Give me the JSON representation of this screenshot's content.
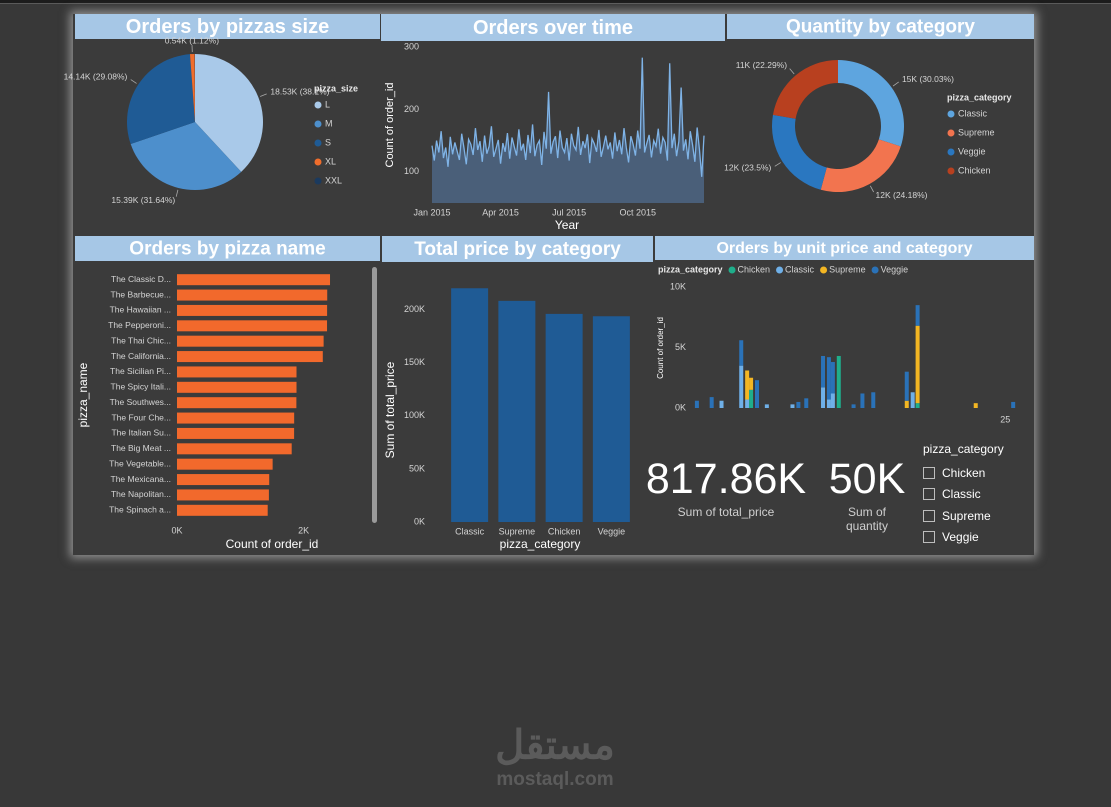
{
  "chart_data": [
    {
      "type": "pie",
      "title": "Orders by pizzas size",
      "legend_title": "pizza_size",
      "categories": [
        "L",
        "M",
        "S",
        "XL",
        "XXL"
      ],
      "values": [
        18526,
        15385,
        14137,
        544,
        28
      ],
      "value_labels": [
        "18.53K (38.1%)",
        "15.39K (31.64%)",
        "14.14K (29.08%)",
        "0.54K (1.12%)",
        null
      ],
      "colors": [
        "#a9c9e9",
        "#4d8fcc",
        "#1f5b95",
        "#f06d2c",
        "#1b3a5e"
      ],
      "legend": "right"
    },
    {
      "type": "line",
      "title": "Orders over time",
      "ylabel": "Count of order_id",
      "xlabel": "Year",
      "categories": [
        "Jan 2015",
        null,
        null,
        null,
        null,
        null,
        null,
        null,
        null,
        null,
        null,
        null,
        null,
        null,
        null,
        null,
        null,
        null,
        null,
        null,
        null,
        null,
        null,
        null,
        null,
        null,
        null,
        null,
        null,
        null,
        "Apr 2015",
        null,
        null,
        null,
        null,
        null,
        null,
        null,
        null,
        null,
        null,
        null,
        null,
        null,
        null,
        null,
        null,
        null,
        null,
        null,
        null,
        null,
        null,
        null,
        null,
        null,
        null,
        null,
        null,
        null,
        "Jul 2015",
        null,
        null,
        null,
        null,
        null,
        null,
        null,
        null,
        null,
        null,
        null,
        null,
        null,
        null,
        null,
        null,
        null,
        null,
        null,
        null,
        null,
        null,
        null,
        null,
        null,
        null,
        null,
        null,
        null,
        "Oct 2015",
        null,
        null,
        null,
        null,
        null,
        null,
        null,
        null,
        null,
        null,
        null,
        null,
        null,
        null,
        null,
        null,
        null,
        null,
        null,
        null,
        null,
        null,
        null,
        null,
        null,
        null,
        null,
        null,
        null
      ],
      "values": [
        142,
        118,
        150,
        131,
        165,
        122,
        139,
        108,
        156,
        128,
        147,
        133,
        119,
        161,
        138,
        112,
        152,
        144,
        127,
        170,
        135,
        149,
        116,
        158,
        129,
        141,
        173,
        124,
        137,
        151,
        113,
        146,
        132,
        162,
        121,
        155,
        140,
        126,
        168,
        134,
        145,
        119,
        159,
        130,
        176,
        125,
        143,
        150,
        111,
        164,
        137,
        228,
        129,
        148,
        157,
        122,
        166,
        139,
        131,
        154,
        118,
        161,
        142,
        135,
        172,
        127,
        149,
        138,
        160,
        114,
        153,
        145,
        132,
        167,
        124,
        140,
        158,
        136,
        147,
        121,
        163,
        133,
        151,
        128,
        170,
        139,
        115,
        157,
        144,
        126,
        166,
        137,
        283,
        131,
        146,
        159,
        123,
        150,
        141,
        169,
        129,
        155,
        147,
        118,
        274,
        138,
        161,
        125,
        149,
        235,
        134,
        152,
        120,
        165,
        143,
        116,
        171,
        136,
        92,
        158
      ],
      "color": "#7fb3e6",
      "area": true,
      "area_color": "#4d6481",
      "ylim": [
        50,
        300
      ],
      "yticks": [
        100,
        200,
        300
      ],
      "grid": false
    },
    {
      "type": "donut",
      "title": "Quantity by category",
      "legend_title": "pizza_category",
      "categories": [
        "Classic",
        "Supreme",
        "Veggie",
        "Chicken"
      ],
      "values": [
        14888,
        11987,
        11649,
        11050
      ],
      "value_labels": [
        "15K (30.03%)",
        "12K (24.18%)",
        "12K (23.5%)",
        "11K (22.29%)"
      ],
      "colors": [
        "#5ea5df",
        "#f2744f",
        "#2a77c0",
        "#b8401f"
      ],
      "legend": "right"
    },
    {
      "type": "bar",
      "orientation": "horizontal",
      "title": "Orders by pizza name",
      "ylabel": "pizza_name",
      "xlabel": "Count of order_id",
      "categories": [
        "The Classic D...",
        "The Barbecue...",
        "The Hawaiian ...",
        "The Pepperoni...",
        "The Thai Chic...",
        "The California...",
        "The Sicilian Pi...",
        "The Spicy Itali...",
        "The Southwes...",
        "The Four Che...",
        "The Italian Su...",
        "The Big Meat ...",
        "The Vegetable...",
        "The Mexicana...",
        "The Napolitan...",
        "The Spinach a..."
      ],
      "values": [
        2416,
        2372,
        2370,
        2369,
        2315,
        2302,
        1887,
        1887,
        1885,
        1850,
        1849,
        1811,
        1510,
        1456,
        1451,
        1432
      ],
      "color": "#f2692c",
      "xlim": [
        0,
        3000
      ],
      "xticks": [
        {
          "value": 0,
          "label": "0K"
        },
        {
          "value": 2000,
          "label": "2K"
        }
      ],
      "grid": false
    },
    {
      "type": "bar",
      "title": "Total price by category",
      "ylabel": "Sum of total_price",
      "xlabel": "pizza_category",
      "categories": [
        "Classic",
        "Supreme",
        "Chicken",
        "Veggie"
      ],
      "values": [
        220053.1,
        208197,
        195919.5,
        193690.45
      ],
      "color": "#1f5b95",
      "ylim": [
        0,
        225000
      ],
      "yticks": [
        {
          "value": 0,
          "label": "0K"
        },
        {
          "value": 50000,
          "label": "50K"
        },
        {
          "value": 100000,
          "label": "100K"
        },
        {
          "value": 150000,
          "label": "150K"
        },
        {
          "value": 200000,
          "label": "200K"
        }
      ],
      "grid": false
    },
    {
      "type": "bar",
      "stacked": true,
      "title": "Orders by unit price and category",
      "ylabel": "Count of order_id",
      "legend_title": "pizza_category",
      "x": [
        9.35,
        10.1,
        10.6,
        11.6,
        11.9,
        12.1,
        12.4,
        12.9,
        14.2,
        14.5,
        14.9,
        15.75,
        16.05,
        16.25,
        16.55,
        17.3,
        17.75,
        18.3,
        20.0,
        20.3,
        20.55,
        23.5,
        25.4
      ],
      "series": [
        {
          "name": "Chicken",
          "color": "#1fae8b",
          "values": [
            null,
            null,
            null,
            null,
            null,
            1500,
            null,
            null,
            null,
            null,
            null,
            null,
            null,
            null,
            4300,
            null,
            null,
            null,
            null,
            null,
            400,
            null,
            null
          ]
        },
        {
          "name": "Classic",
          "color": "#6fb0e8",
          "values": [
            null,
            null,
            600,
            3500,
            700,
            null,
            null,
            300,
            300,
            null,
            null,
            1700,
            700,
            1200,
            null,
            null,
            null,
            null,
            null,
            1300,
            null,
            null,
            null
          ]
        },
        {
          "name": "Supreme",
          "color": "#f3b623",
          "values": [
            null,
            null,
            null,
            null,
            2400,
            1000,
            null,
            null,
            null,
            null,
            null,
            null,
            null,
            null,
            null,
            null,
            null,
            null,
            600,
            null,
            6400,
            400,
            null
          ]
        },
        {
          "name": "Veggie",
          "color": "#2a72b8",
          "values": [
            600,
            900,
            null,
            2100,
            null,
            null,
            2300,
            null,
            null,
            500,
            800,
            2600,
            3500,
            2600,
            null,
            300,
            1200,
            1300,
            2400,
            null,
            1700,
            null,
            500
          ]
        }
      ],
      "xlim": [
        9,
        26
      ],
      "xticks": [
        25
      ],
      "ylim": [
        0,
        10000
      ],
      "yticks": [
        {
          "value": 0,
          "label": "0K"
        },
        {
          "value": 5000,
          "label": "5K"
        },
        {
          "value": 10000,
          "label": "10K"
        }
      ],
      "legend": "top"
    }
  ],
  "kpis": [
    {
      "value": "817.86K",
      "label": "Sum of total_price"
    },
    {
      "value": "50K",
      "label": "Sum of quantity"
    }
  ],
  "slicer": {
    "title": "pizza_category",
    "items": [
      "Chicken",
      "Classic",
      "Supreme",
      "Veggie"
    ]
  },
  "watermark": {
    "arabic": "مستقل",
    "latin": "mostaql.com"
  }
}
